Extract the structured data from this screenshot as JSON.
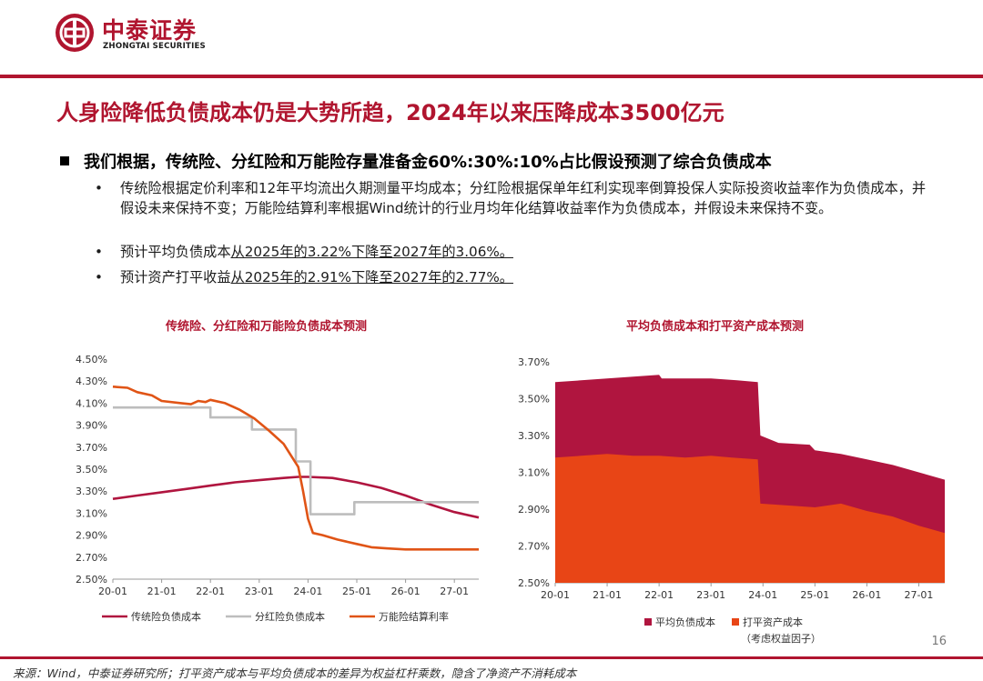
{
  "brand": {
    "name_cn": "中泰证券",
    "name_en": "ZHONGTAI SECURITIES",
    "color": "#b0152f"
  },
  "title": "人身险降低负债成本仍是大势所趋，2024年以来压降成本3500亿元",
  "bullet_main": "我们根据，传统险、分红险和万能险存量准备金60%:30%:10%占比假设预测了综合负债成本",
  "sub_bullets": {
    "b1": "传统险根据定价利率和12年平均流出久期测量平均成本；分红险根据保单年红利实现率倒算投保人实际投资收益率作为负债成本，并假设未来保持不变；万能险结算利率根据Wind统计的行业月均年化结算收益率作为负债成本，并假设未来保持不变。",
    "b2_prefix": "预计平均负债成本",
    "b2_underlined": "从2025年的3.22%下降至2027年的3.06%。",
    "b3_prefix": "预计资产打平收益",
    "b3_underlined": "从2025年的2.91%下降至2027年的2.77%。"
  },
  "chart_data": [
    {
      "type": "line",
      "title": "传统险、分红险和万能险负债成本预测",
      "x": [
        "20-01",
        "21-01",
        "22-01",
        "23-01",
        "24-01",
        "25-01",
        "26-01",
        "27-01"
      ],
      "ylim": [
        2.5,
        4.5
      ],
      "yticks": [
        "4.50%",
        "4.30%",
        "4.10%",
        "3.90%",
        "3.70%",
        "3.50%",
        "3.30%",
        "3.10%",
        "2.90%",
        "2.70%",
        "2.50%"
      ],
      "series": [
        {
          "name": "传统险负债成本",
          "color": "#b0153f",
          "points": [
            [
              0,
              3.23
            ],
            [
              0.5,
              3.26
            ],
            [
              1,
              3.29
            ],
            [
              1.5,
              3.32
            ],
            [
              2,
              3.35
            ],
            [
              2.5,
              3.38
            ],
            [
              3,
              3.4
            ],
            [
              3.5,
              3.42
            ],
            [
              3.8,
              3.43
            ],
            [
              4,
              3.43
            ],
            [
              4.5,
              3.42
            ],
            [
              5,
              3.38
            ],
            [
              5.5,
              3.33
            ],
            [
              6,
              3.26
            ],
            [
              6.5,
              3.18
            ],
            [
              7,
              3.11
            ],
            [
              7.5,
              3.06
            ]
          ]
        },
        {
          "name": "分红险负债成本",
          "color": "#bdbdbd",
          "points": [
            [
              0,
              4.06
            ],
            [
              2,
              4.06
            ],
            [
              2,
              3.97
            ],
            [
              2.85,
              3.97
            ],
            [
              2.85,
              3.86
            ],
            [
              3.75,
              3.86
            ],
            [
              3.75,
              3.57
            ],
            [
              4.05,
              3.57
            ],
            [
              4.05,
              3.09
            ],
            [
              4.95,
              3.09
            ],
            [
              4.95,
              3.2
            ],
            [
              7.5,
              3.2
            ]
          ]
        },
        {
          "name": "万能险结算利率",
          "color": "#e05416",
          "points": [
            [
              0,
              4.25
            ],
            [
              0.3,
              4.24
            ],
            [
              0.5,
              4.2
            ],
            [
              0.8,
              4.17
            ],
            [
              1,
              4.12
            ],
            [
              1.4,
              4.1
            ],
            [
              1.6,
              4.09
            ],
            [
              1.75,
              4.12
            ],
            [
              1.9,
              4.11
            ],
            [
              2,
              4.13
            ],
            [
              2.3,
              4.1
            ],
            [
              2.6,
              4.04
            ],
            [
              2.9,
              3.96
            ],
            [
              3.2,
              3.85
            ],
            [
              3.5,
              3.73
            ],
            [
              3.8,
              3.52
            ],
            [
              3.9,
              3.3
            ],
            [
              4.0,
              3.05
            ],
            [
              4.1,
              2.92
            ],
            [
              4.3,
              2.9
            ],
            [
              4.6,
              2.86
            ],
            [
              5,
              2.82
            ],
            [
              5.3,
              2.79
            ],
            [
              5.6,
              2.78
            ],
            [
              6,
              2.77
            ],
            [
              7.5,
              2.77
            ]
          ]
        }
      ]
    },
    {
      "type": "area",
      "title": "平均负债成本和打平资产成本预测",
      "x": [
        "20-01",
        "21-01",
        "22-01",
        "23-01",
        "24-01",
        "25-01",
        "26-01",
        "27-01"
      ],
      "ylim": [
        2.5,
        3.7
      ],
      "yticks": [
        "3.70%",
        "3.50%",
        "3.30%",
        "3.10%",
        "2.90%",
        "2.70%",
        "2.50%"
      ],
      "series": [
        {
          "name": "平均负债成本",
          "color": "#b0153f",
          "points": [
            [
              0,
              3.59
            ],
            [
              0.5,
              3.6
            ],
            [
              1,
              3.61
            ],
            [
              1.5,
              3.62
            ],
            [
              2,
              3.63
            ],
            [
              2.05,
              3.61
            ],
            [
              3,
              3.61
            ],
            [
              3.5,
              3.6
            ],
            [
              3.9,
              3.59
            ],
            [
              3.95,
              3.3
            ],
            [
              4.3,
              3.26
            ],
            [
              4.9,
              3.25
            ],
            [
              5,
              3.22
            ],
            [
              5.5,
              3.2
            ],
            [
              6,
              3.17
            ],
            [
              6.5,
              3.14
            ],
            [
              7,
              3.1
            ],
            [
              7.5,
              3.06
            ]
          ]
        },
        {
          "name": "打平资产成本",
          "color": "#e84516",
          "points": [
            [
              0,
              3.18
            ],
            [
              0.5,
              3.19
            ],
            [
              1,
              3.2
            ],
            [
              1.5,
              3.19
            ],
            [
              2,
              3.19
            ],
            [
              2.5,
              3.18
            ],
            [
              3,
              3.19
            ],
            [
              3.4,
              3.18
            ],
            [
              3.9,
              3.17
            ],
            [
              3.95,
              2.93
            ],
            [
              4.5,
              2.92
            ],
            [
              5,
              2.91
            ],
            [
              5.5,
              2.93
            ],
            [
              6,
              2.89
            ],
            [
              6.5,
              2.86
            ],
            [
              7,
              2.81
            ],
            [
              7.5,
              2.77
            ]
          ]
        }
      ],
      "legend_note": "（考虑权益因子）"
    }
  ],
  "page_number": "16",
  "footer": "来源：Wind，中泰证券研究所；打平资产成本与平均负债成本的差异为权益杠杆乘数，隐含了净资产不消耗成本"
}
